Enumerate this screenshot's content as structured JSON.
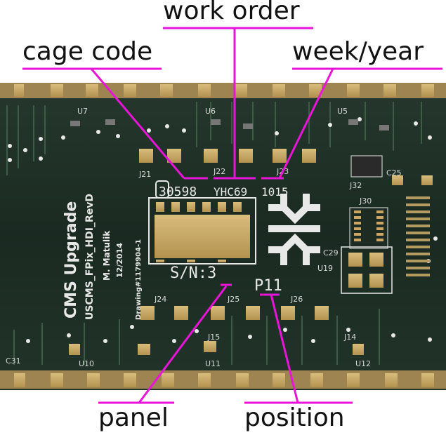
{
  "callouts": {
    "work_order": "work order",
    "cage_code": "cage code",
    "week_year": "week/year",
    "panel": "panel",
    "position": "position"
  },
  "board": {
    "cage_code_value": "30598",
    "work_order_value": "YHC69",
    "week_year_value": "1015",
    "serial_label": "S/N:3",
    "position_value": "P11",
    "side_text": [
      "CMS Upgrade",
      "USCMS_FPix_HDI_RevD",
      "M. Matulik",
      "12/2014",
      "Drawing#1179904-1"
    ],
    "chip_labels": [
      "U7",
      "U6",
      "U5",
      "U19",
      "U10",
      "U11",
      "U12"
    ],
    "part_labels": [
      "J21",
      "J22",
      "J23",
      "J24",
      "J25",
      "J26",
      "J30",
      "J32",
      "C25",
      "C29",
      "C31",
      "J15",
      "J14"
    ]
  },
  "colors": {
    "callout_line": "#e815d8",
    "board": "#1b2a22",
    "pad": "#c8a864",
    "silkscreen": "#e8e8e8"
  }
}
